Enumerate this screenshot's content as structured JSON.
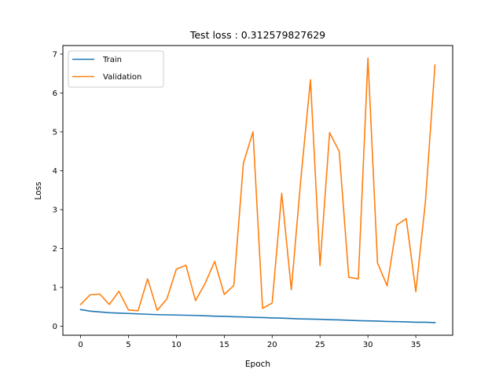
{
  "chart_data": {
    "type": "line",
    "title": "Test loss : 0.312579827629",
    "xlabel": "Epoch",
    "ylabel": "Loss",
    "xlim": [
      -1.85,
      38.85
    ],
    "ylim": [
      -0.23,
      7.22
    ],
    "x_ticks": [
      0,
      5,
      10,
      15,
      20,
      25,
      30,
      35
    ],
    "y_ticks": [
      0,
      1,
      2,
      3,
      4,
      5,
      6,
      7
    ],
    "x_tick_labels": [
      "0",
      "5",
      "10",
      "15",
      "20",
      "25",
      "30",
      "35"
    ],
    "y_tick_labels": [
      "0",
      "1",
      "2",
      "3",
      "4",
      "5",
      "6",
      "7"
    ],
    "legend_position": "upper left",
    "grid": false,
    "x": [
      0,
      1,
      2,
      3,
      4,
      5,
      6,
      7,
      8,
      9,
      10,
      11,
      12,
      13,
      14,
      15,
      16,
      17,
      18,
      19,
      20,
      21,
      22,
      23,
      24,
      25,
      26,
      27,
      28,
      29,
      30,
      31,
      32,
      33,
      34,
      35,
      36,
      37
    ],
    "series": [
      {
        "name": "Train",
        "color": "#1f77b4",
        "values": [
          0.43,
          0.39,
          0.37,
          0.35,
          0.34,
          0.33,
          0.32,
          0.31,
          0.3,
          0.295,
          0.29,
          0.285,
          0.28,
          0.27,
          0.26,
          0.255,
          0.245,
          0.24,
          0.23,
          0.225,
          0.215,
          0.21,
          0.2,
          0.19,
          0.185,
          0.18,
          0.17,
          0.165,
          0.155,
          0.145,
          0.14,
          0.135,
          0.125,
          0.12,
          0.115,
          0.105,
          0.105,
          0.095
        ]
      },
      {
        "name": "Validation",
        "color": "#ff7f0e",
        "values": [
          0.56,
          0.81,
          0.83,
          0.56,
          0.9,
          0.42,
          0.4,
          1.22,
          0.41,
          0.7,
          1.47,
          1.57,
          0.66,
          1.1,
          1.67,
          0.82,
          1.05,
          4.2,
          5.0,
          0.46,
          0.6,
          3.42,
          0.94,
          3.8,
          6.34,
          1.56,
          4.98,
          4.5,
          1.26,
          1.22,
          6.9,
          1.63,
          1.04,
          2.6,
          2.77,
          0.89,
          3.2,
          6.72
        ]
      }
    ]
  }
}
